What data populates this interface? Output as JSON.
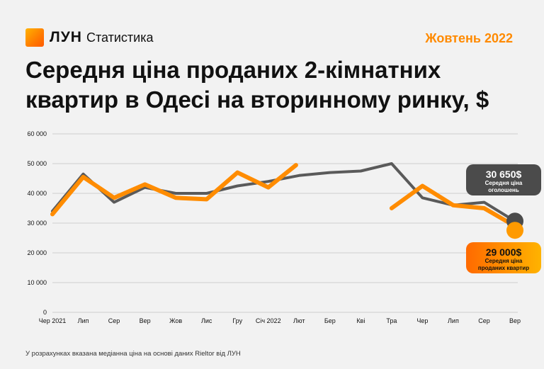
{
  "brand": {
    "name": "ЛУН",
    "section": "Статистика",
    "accent": "#ff8a00"
  },
  "period": "Жовтень 2022",
  "title": "Середня ціна проданих 2-кімнатних квартир в Одесі на вторинному ринку, $",
  "footnote": "У розрахунках вказана медіанна ціна на основі даних Rieltor від ЛУН",
  "callouts": {
    "listing": {
      "value": "30 650$",
      "label_1": "Середня ціна",
      "label_2": "оголошень"
    },
    "sold": {
      "value": "29 000$",
      "label_1": "Середня ціна",
      "label_2": "проданих квартир"
    }
  },
  "chart_data": {
    "type": "line",
    "categories": [
      "Чер 2021",
      "Лип",
      "Сер",
      "Вер",
      "Жов",
      "Лис",
      "Гру",
      "Січ 2022",
      "Лют",
      "Бер",
      "Кві",
      "Тра",
      "Чер",
      "Лип",
      "Сер",
      "Вер"
    ],
    "x_tick_positions": [
      0,
      1,
      2,
      3,
      4,
      5,
      6,
      7,
      8,
      9,
      10,
      11,
      12,
      13,
      14,
      15
    ],
    "ylim": [
      0,
      60000
    ],
    "yticks": [
      0,
      10000,
      20000,
      30000,
      40000,
      50000,
      60000
    ],
    "ytick_labels": [
      "0",
      "10 000",
      "20 000",
      "30 000",
      "40 000",
      "50 000",
      "60 000"
    ],
    "grid": true,
    "series": [
      {
        "name": "Середня ціна оголошень",
        "color": "#5a5a5a",
        "points": [
          [
            0,
            34000
          ],
          [
            1,
            46500
          ],
          [
            2,
            37000
          ],
          [
            3,
            42000
          ],
          [
            4,
            40000
          ],
          [
            5,
            40000
          ],
          [
            6,
            42500
          ],
          [
            7,
            44000
          ],
          [
            8,
            46000
          ],
          [
            9,
            47000
          ],
          [
            10,
            47500
          ],
          [
            11,
            50000
          ],
          [
            12,
            38500
          ],
          [
            13,
            36000
          ],
          [
            14,
            37000
          ],
          [
            15,
            30650
          ]
        ]
      },
      {
        "name": "Середня ціна проданих квартир",
        "color": "#ff8c00",
        "segments": [
          [
            [
              0,
              33000
            ],
            [
              1,
              45500
            ],
            [
              2,
              38500
            ],
            [
              3,
              43000
            ],
            [
              4,
              38500
            ],
            [
              5,
              38000
            ],
            [
              6,
              47000
            ],
            [
              7,
              42000
            ],
            [
              7.9,
              49500
            ]
          ],
          [
            [
              11,
              35000
            ],
            [
              12,
              42500
            ],
            [
              13,
              36000
            ],
            [
              14,
              35000
            ],
            [
              15,
              29000
            ]
          ]
        ]
      }
    ]
  }
}
